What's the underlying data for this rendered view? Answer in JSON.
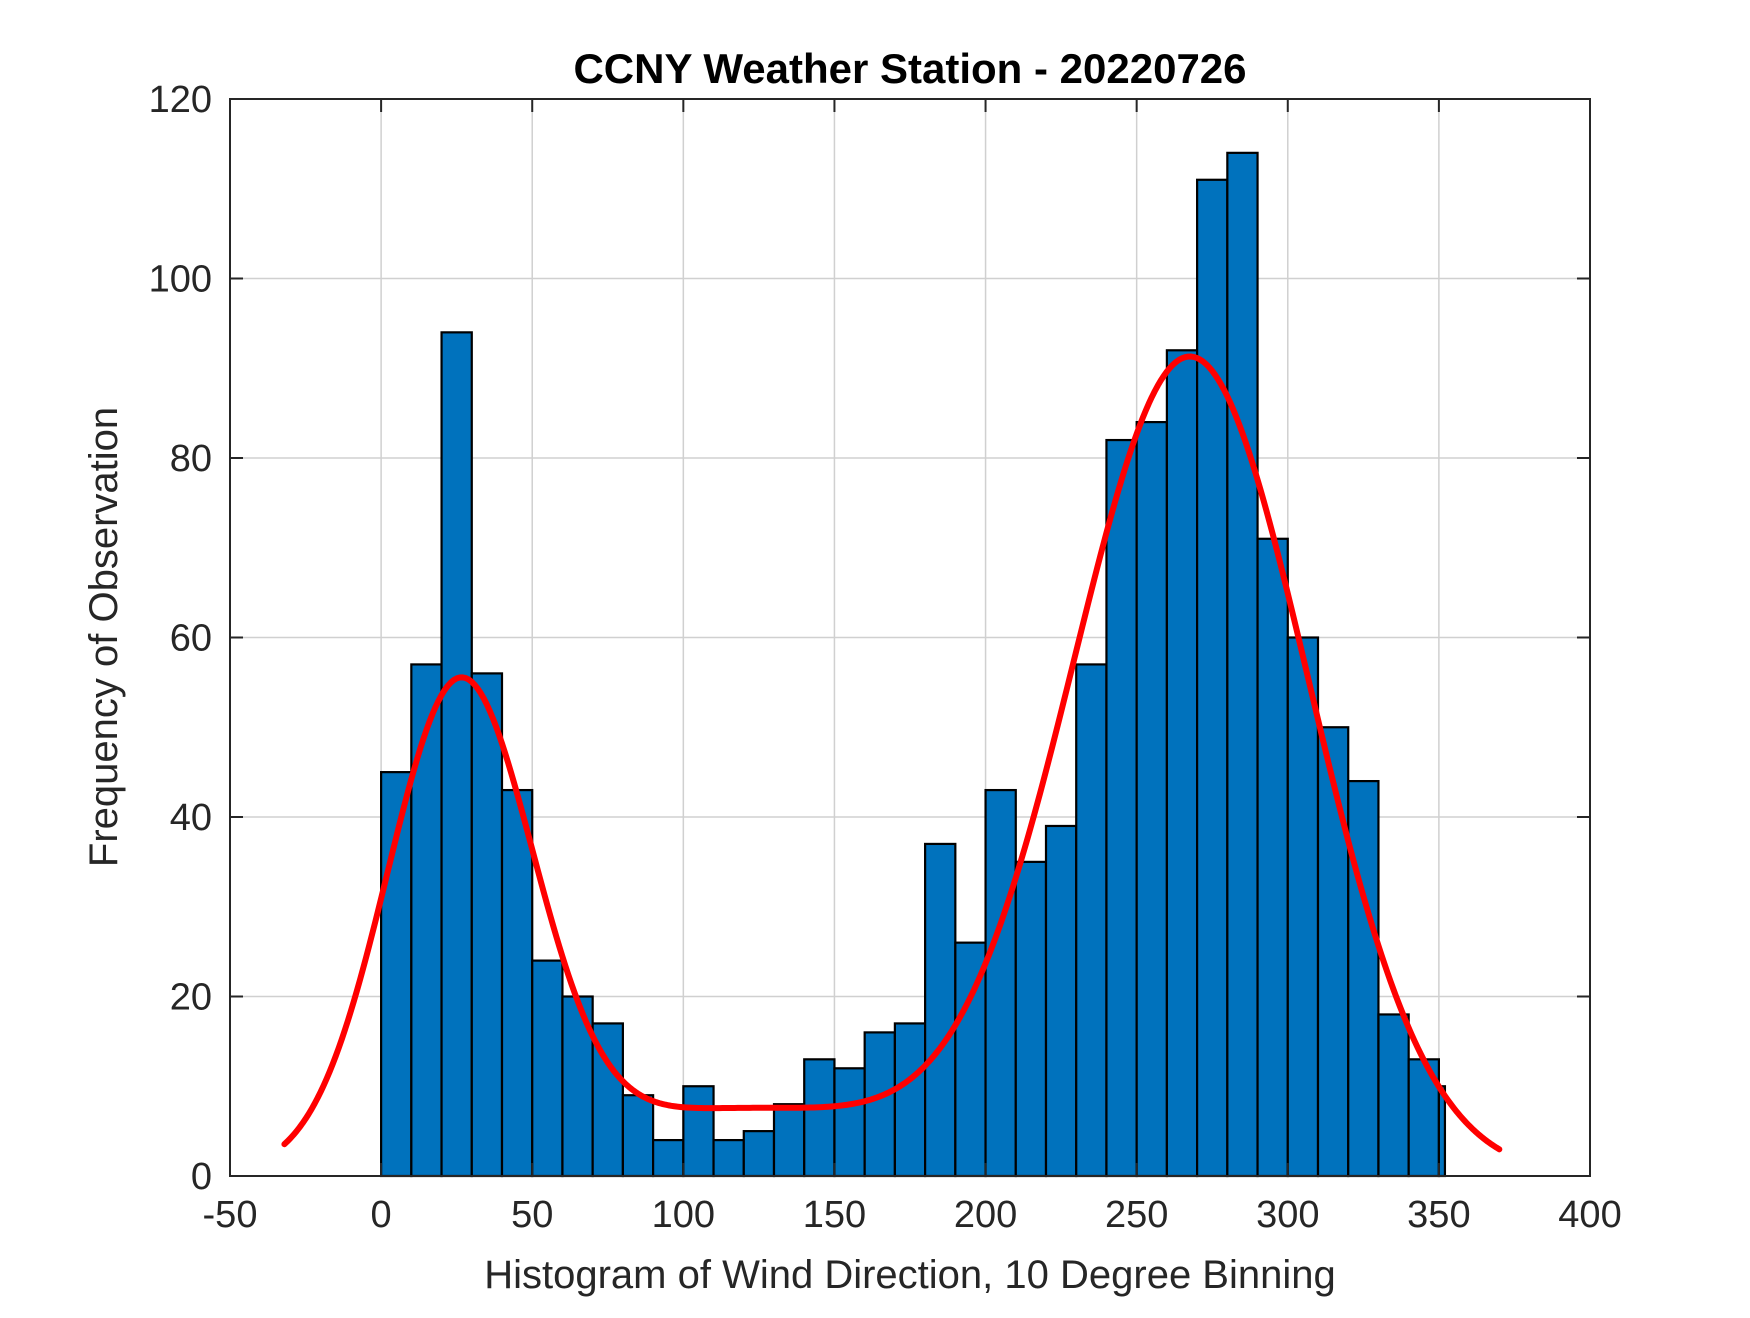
{
  "chart_data": {
    "type": "bar",
    "title": "CCNY Weather Station - 20220726",
    "xlabel": "Histogram of Wind Direction, 10 Degree Binning",
    "ylabel": "Frequency of Observation",
    "xlim": [
      -50,
      400
    ],
    "ylim": [
      0,
      120
    ],
    "xticks": [
      -50,
      0,
      50,
      100,
      150,
      200,
      250,
      300,
      350,
      400
    ],
    "yticks": [
      0,
      20,
      40,
      60,
      80,
      100,
      120
    ],
    "xtick_labels": [
      "-50",
      "0",
      "50",
      "100",
      "150",
      "200",
      "250",
      "300",
      "350",
      "400"
    ],
    "ytick_labels": [
      "0",
      "20",
      "40",
      "60",
      "80",
      "100",
      "120"
    ],
    "grid": true,
    "bin_width": 10,
    "bin_edges_start": 0,
    "bin_last_edge": 352,
    "values": [
      45,
      57,
      94,
      56,
      43,
      24,
      20,
      17,
      9,
      4,
      10,
      4,
      5,
      8,
      13,
      12,
      16,
      17,
      37,
      26,
      43,
      35,
      39,
      57,
      82,
      84,
      92,
      111,
      114,
      71,
      60,
      50,
      44,
      18,
      13,
      10
    ],
    "bar_color": "#0072BD",
    "bar_edge_color": "#000000",
    "fit_curve": {
      "color": "#FF0000",
      "x_range": [
        -32,
        370
      ],
      "components": [
        {
          "amplitude": 52.5,
          "mean": 26,
          "sigma": 24
        },
        {
          "amplitude": 90.5,
          "mean": 268,
          "sigma": 39
        },
        {
          "amplitude": 7.5,
          "mean": 120,
          "sigma": 70
        }
      ]
    }
  }
}
